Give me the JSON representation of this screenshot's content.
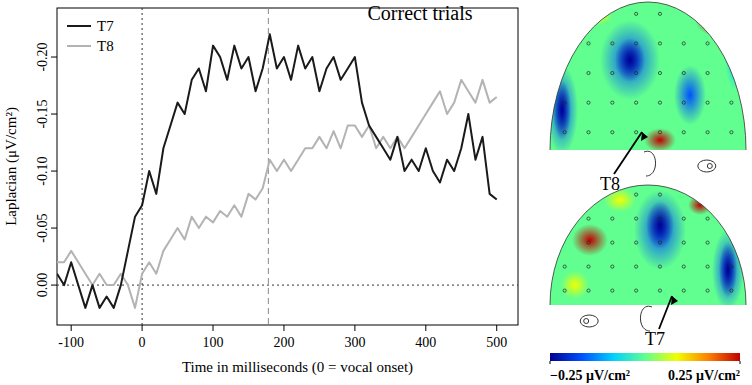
{
  "chart_data": {
    "type": "line",
    "title": "Correct trials",
    "x_label": "Time in milliseconds (0 = vocal onset)",
    "y_label": "Laplacian (μV/cm²)",
    "x": [
      -120,
      -110,
      -100,
      -90,
      -80,
      -70,
      -60,
      -50,
      -40,
      -30,
      -20,
      -10,
      0,
      10,
      20,
      30,
      40,
      50,
      60,
      70,
      80,
      90,
      100,
      110,
      120,
      130,
      140,
      150,
      160,
      170,
      180,
      190,
      200,
      210,
      220,
      230,
      240,
      250,
      260,
      270,
      280,
      290,
      300,
      310,
      320,
      330,
      340,
      350,
      360,
      370,
      380,
      390,
      400,
      410,
      420,
      430,
      440,
      450,
      460,
      470,
      480,
      490,
      500
    ],
    "series": [
      {
        "name": "T7",
        "color": "#1a1a1a",
        "line_style": "solid",
        "values": [
          -0.01,
          0.0,
          -0.02,
          0.0,
          0.02,
          0.0,
          0.02,
          0.01,
          0.02,
          0.0,
          -0.03,
          -0.06,
          -0.07,
          -0.1,
          -0.08,
          -0.12,
          -0.14,
          -0.16,
          -0.15,
          -0.18,
          -0.19,
          -0.17,
          -0.21,
          -0.2,
          -0.18,
          -0.21,
          -0.19,
          -0.2,
          -0.17,
          -0.19,
          -0.22,
          -0.19,
          -0.2,
          -0.18,
          -0.21,
          -0.19,
          -0.2,
          -0.17,
          -0.19,
          -0.2,
          -0.18,
          -0.19,
          -0.2,
          -0.16,
          -0.14,
          -0.13,
          -0.12,
          -0.11,
          -0.13,
          -0.1,
          -0.11,
          -0.1,
          -0.12,
          -0.1,
          -0.09,
          -0.11,
          -0.1,
          -0.12,
          -0.15,
          -0.11,
          -0.13,
          -0.08,
          -0.075
        ]
      },
      {
        "name": "T8",
        "color": "#b3b3b3",
        "line_style": "solid",
        "values": [
          -0.02,
          -0.02,
          -0.03,
          -0.02,
          -0.01,
          0.0,
          -0.01,
          0.0,
          0.0,
          -0.01,
          0.0,
          0.02,
          -0.01,
          -0.02,
          -0.01,
          -0.03,
          -0.04,
          -0.05,
          -0.04,
          -0.06,
          -0.05,
          -0.06,
          -0.055,
          -0.065,
          -0.06,
          -0.07,
          -0.06,
          -0.08,
          -0.075,
          -0.085,
          -0.11,
          -0.1,
          -0.11,
          -0.1,
          -0.11,
          -0.12,
          -0.12,
          -0.13,
          -0.12,
          -0.135,
          -0.12,
          -0.14,
          -0.14,
          -0.13,
          -0.14,
          -0.12,
          -0.13,
          -0.12,
          -0.13,
          -0.12,
          -0.13,
          -0.14,
          -0.15,
          -0.16,
          -0.17,
          -0.15,
          -0.16,
          -0.18,
          -0.17,
          -0.16,
          -0.18,
          -0.16,
          -0.165
        ]
      }
    ],
    "xlim": [
      -120,
      530
    ],
    "ylim": [
      0.035,
      -0.243
    ],
    "xticks": [
      -100,
      0,
      100,
      200,
      300,
      400,
      500
    ],
    "yticks": [
      {
        "value": 0.0,
        "label": "0.00"
      },
      {
        "value": -0.05,
        "label": "-0.05"
      },
      {
        "value": -0.1,
        "label": "-0.10"
      },
      {
        "value": -0.15,
        "label": "-0.15"
      },
      {
        "value": -0.2,
        "label": "-0.20"
      }
    ],
    "vlines": [
      {
        "x": 0,
        "line_style": "dotted"
      },
      {
        "x": 178,
        "line_style": "dashed"
      }
    ],
    "hlines": [
      {
        "y": 0,
        "line_style": "dotted"
      }
    ],
    "legend": "upper left",
    "grid": false
  },
  "topomaps": {
    "maps": [
      {
        "label": "T8"
      },
      {
        "label": "T7"
      }
    ],
    "colorbar": {
      "range": [
        -0.25,
        0.25
      ],
      "ticks": [
        {
          "value": -0.25,
          "label": "−0.25 μV/cm²"
        },
        {
          "value": 0.25,
          "label": "0.25 μV/cm²"
        }
      ]
    }
  }
}
